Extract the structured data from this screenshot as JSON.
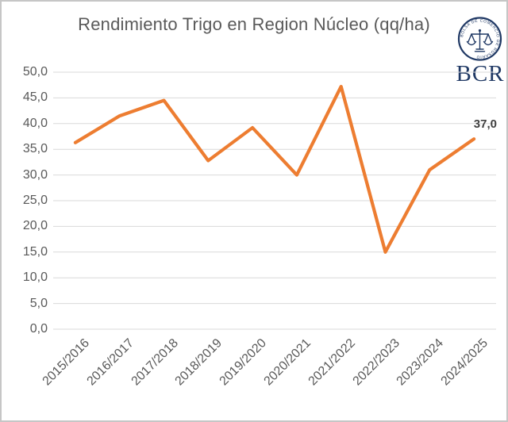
{
  "chart_data": {
    "type": "line",
    "title": "Rendimiento Trigo en Region Núcleo (qq/ha)",
    "categories": [
      "2015/2016",
      "2016/2017",
      "2017/2018",
      "2018/2019",
      "2019/2020",
      "2020/2021",
      "2021/2022",
      "2022/2023",
      "2023/2024",
      "2024/2025"
    ],
    "series": [
      {
        "name": "Rendimiento Trigo",
        "values": [
          36.3,
          41.5,
          44.5,
          32.8,
          39.2,
          30.0,
          47.2,
          15.0,
          31.0,
          37.0
        ]
      }
    ],
    "xlabel": "",
    "ylabel": "",
    "ylim": [
      0,
      50
    ],
    "ytick_step": 5,
    "ytick_labels": [
      "0,0",
      "5,0",
      "10,0",
      "15,0",
      "20,0",
      "25,0",
      "30,0",
      "35,0",
      "40,0",
      "45,0",
      "50,0"
    ],
    "grid": true,
    "legend": "none",
    "last_point_label": "37,0",
    "line_color": "#ED7D31",
    "grid_color": "#D9D9D9",
    "text_color": "#595959",
    "data_label_color": "#3F3F3F"
  },
  "logo": {
    "text": "BCR",
    "ring_text": "BOLSA DE COMERCIO DE ROSARIO",
    "color": "#1F3864"
  }
}
